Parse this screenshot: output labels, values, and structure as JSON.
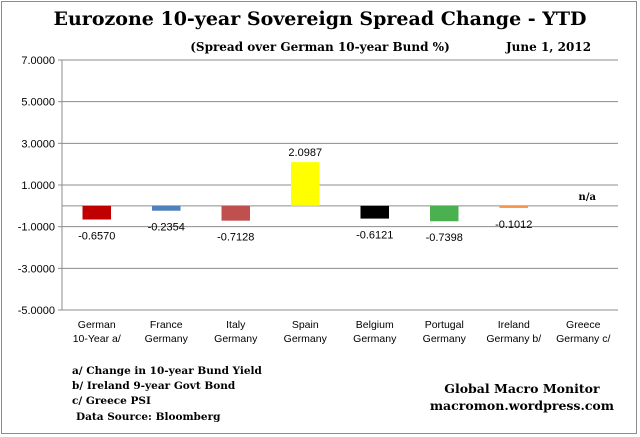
{
  "chart_data": {
    "type": "bar",
    "title": "Eurozone 10-year Sovereign Spread Change - YTD",
    "subtitle": "(Spread over German 10-year Bund %)",
    "date": "June 1,  2012",
    "categories": [
      [
        "German",
        "10-Year a/"
      ],
      [
        "France",
        "Germany"
      ],
      [
        "Italy",
        "Germany"
      ],
      [
        "Spain",
        "Germany"
      ],
      [
        "Belgium",
        "Germany"
      ],
      [
        "Portugal",
        "Germany"
      ],
      [
        "Ireland",
        "Germany b/"
      ],
      [
        "Greece",
        "Germany c/"
      ]
    ],
    "values": [
      -0.657,
      -0.2354,
      -0.7128,
      2.0987,
      -0.6121,
      -0.7398,
      -0.1012,
      null
    ],
    "value_labels": [
      "-0.6570",
      "-0.2354",
      "-0.7128",
      "2.0987",
      "-0.6121",
      "-0.7398",
      "-0.1012",
      "n/a"
    ],
    "colors": [
      "#c00000",
      "#4f81bd",
      "#c0504d",
      "#ffff00",
      "#000000",
      "#4bb050",
      "#f79646",
      "#ffffff"
    ],
    "ylim": [
      -5,
      7
    ],
    "yticks": [
      7,
      5,
      3,
      1,
      -1,
      -3,
      -5
    ],
    "ytick_labels": [
      "7.0000",
      "5.0000",
      "3.0000",
      "1.0000",
      "-1.0000",
      "-3.0000",
      "-5.0000"
    ],
    "grid": true,
    "legend": "none"
  },
  "notes": [
    "a/  Change in 10-year Bund Yield",
    "b/  Ireland 9-year Govt Bond",
    "c/  Greece PSI"
  ],
  "source": "Data Source:  Bloomberg",
  "credit": {
    "line1": "Global Macro Monitor",
    "line2": "macromon.wordpress.com"
  }
}
